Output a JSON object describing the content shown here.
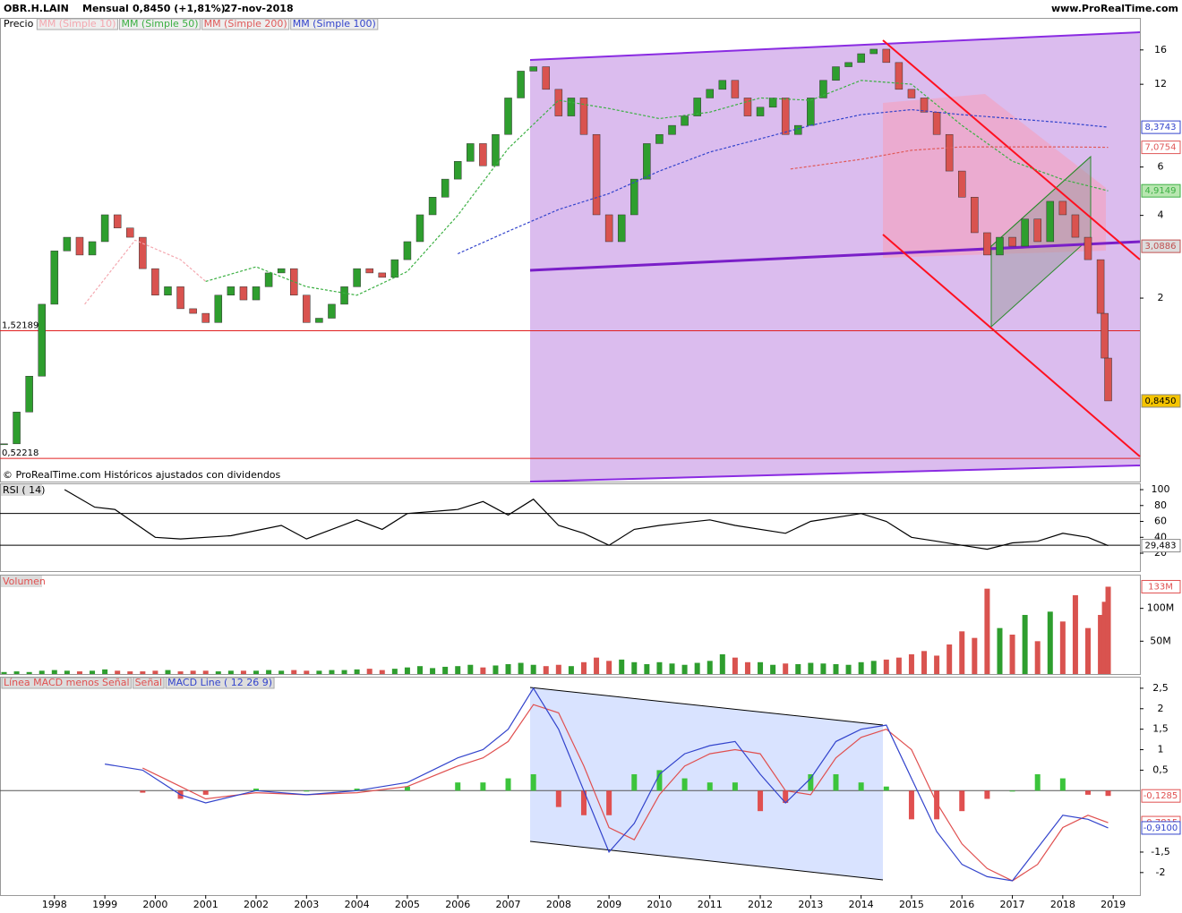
{
  "chart_data": [
    {
      "type": "candlestick",
      "log": true,
      "title": "OBR.H.LAIN",
      "period": "Mensual",
      "last": "0,8450 (+1,81%)",
      "date": "27-nov-2018",
      "source": "www.ProRealTime.com",
      "footnote": "© ProRealTime.com  Históricos ajustados con dividendos",
      "xlim": [
        1996.92,
        2019.53
      ],
      "xticks": [
        1998,
        1999,
        2000,
        2001,
        2002,
        2003,
        2004,
        2005,
        2006,
        2007,
        2008,
        2009,
        2010,
        2011,
        2012,
        2013,
        2014,
        2015,
        2016,
        2017,
        2018,
        2019
      ],
      "ylim": [
        0.43,
        18.7
      ],
      "yticks": [
        2,
        4,
        6,
        12,
        16
      ],
      "hlines": [
        {
          "value": 1.52189,
          "label": "1,52189"
        },
        {
          "value": 0.52218,
          "label": "0,52218"
        }
      ],
      "hline_color": "#e02020",
      "tags": [
        {
          "value": 3.0886,
          "label": "3,0886"
        }
      ],
      "series": [
        {
          "name": "Precio",
          "up_color": "#2e9e2e",
          "down_color": "#d9534f",
          "x": [
            1997.0,
            1997.25,
            1997.5,
            1997.75,
            1998.0,
            1998.25,
            1998.5,
            1998.75,
            1999.0,
            1999.25,
            1999.5,
            1999.75,
            2000.0,
            2000.25,
            2000.5,
            2000.75,
            2001.0,
            2001.25,
            2001.5,
            2001.75,
            2002.0,
            2002.25,
            2002.5,
            2002.75,
            2003.0,
            2003.25,
            2003.5,
            2003.75,
            2004.0,
            2004.25,
            2004.5,
            2004.75,
            2005.0,
            2005.25,
            2005.5,
            2005.75,
            2006.0,
            2006.25,
            2006.5,
            2006.75,
            2007.0,
            2007.25,
            2007.5,
            2007.75,
            2008.0,
            2008.25,
            2008.5,
            2008.75,
            2009.0,
            2009.25,
            2009.5,
            2009.75,
            2010.0,
            2010.25,
            2010.5,
            2010.75,
            2011.0,
            2011.25,
            2011.5,
            2011.75,
            2012.0,
            2012.25,
            2012.5,
            2012.75,
            2013.0,
            2013.25,
            2013.5,
            2013.75,
            2014.0,
            2014.25,
            2014.5,
            2014.75,
            2015.0,
            2015.25,
            2015.5,
            2015.75,
            2016.0,
            2016.25,
            2016.5,
            2016.75,
            2017.0,
            2017.25,
            2017.5,
            2017.75,
            2018.0,
            2018.25,
            2018.5,
            2018.75,
            2018.83,
            2018.9
          ],
          "values": [
            0.59,
            0.77,
            1.04,
            1.9,
            2.97,
            3.33,
            2.87,
            3.21,
            4.02,
            3.6,
            3.33,
            2.56,
            2.05,
            2.2,
            1.83,
            1.76,
            1.63,
            2.05,
            2.2,
            1.97,
            2.2,
            2.47,
            2.56,
            2.05,
            1.63,
            1.69,
            1.9,
            2.2,
            2.56,
            2.47,
            2.38,
            2.76,
            3.21,
            4.02,
            4.66,
            5.42,
            6.29,
            7.3,
            6.06,
            7.88,
            10.7,
            13.4,
            13.9,
            11.5,
            9.2,
            10.7,
            7.88,
            4.02,
            3.21,
            4.02,
            5.42,
            7.3,
            7.88,
            8.5,
            9.2,
            10.7,
            11.5,
            12.4,
            10.7,
            9.2,
            9.9,
            10.7,
            7.88,
            8.5,
            10.7,
            12.4,
            13.9,
            14.4,
            15.5,
            16.1,
            14.4,
            11.5,
            10.7,
            9.5,
            7.88,
            5.8,
            4.66,
            3.46,
            2.87,
            3.33,
            3.09,
            3.88,
            3.21,
            4.5,
            4.02,
            3.33,
            2.76,
            1.76,
            1.21,
            0.845
          ],
          "last_label": "0,8450",
          "tag_color": "#f5c400"
        },
        {
          "name": "MM (Simple 10)",
          "color": "#f4a8b0",
          "x": [
            1998.6,
            1999.6,
            2000.5,
            2001.0
          ],
          "values": [
            1.9,
            3.25,
            2.76,
            2.3
          ]
        },
        {
          "name": "MM (Simple 50)",
          "color": "#3cb043",
          "x": [
            2001.0,
            2002.0,
            2003.0,
            2004.0,
            2005.0,
            2006.0,
            2007.0,
            2008.0,
            2009.0,
            2010.0,
            2011.0,
            2012.0,
            2013.0,
            2014.0,
            2015.0,
            2016.0,
            2017.0,
            2018.0,
            2018.9
          ],
          "values": [
            2.3,
            2.6,
            2.2,
            2.05,
            2.5,
            4.0,
            7.0,
            10.5,
            9.8,
            9.0,
            9.5,
            10.7,
            10.5,
            12.4,
            12.0,
            8.5,
            6.3,
            5.4,
            4.9149
          ],
          "last_label": "4,9149"
        },
        {
          "name": "MM (Simple 200)",
          "color": "#e05a5a",
          "x": [
            2012.6,
            2014.0,
            2015.0,
            2016.0,
            2017.0,
            2018.0,
            2018.9
          ],
          "values": [
            5.9,
            6.4,
            6.9,
            7.1,
            7.1,
            7.1,
            7.0754
          ],
          "last_label": "7,0754"
        },
        {
          "name": "MM (Simple 100)",
          "color": "#3344cc",
          "x": [
            2006.0,
            2007.0,
            2008.0,
            2009.0,
            2010.0,
            2011.0,
            2012.0,
            2013.0,
            2014.0,
            2015.0,
            2016.0,
            2017.0,
            2018.0,
            2018.9
          ],
          "values": [
            2.9,
            3.5,
            4.2,
            4.8,
            5.8,
            6.8,
            7.6,
            8.5,
            9.3,
            9.7,
            9.3,
            9.0,
            8.7,
            8.3743
          ],
          "last_label": "8,3743"
        }
      ]
    },
    {
      "type": "line",
      "title": "RSI ( 14)",
      "ylim": [
        -2.5,
        106.8
      ],
      "yticks": [
        20,
        40,
        60,
        80,
        100
      ],
      "levels": [
        70,
        30
      ],
      "series": [
        {
          "name": "RSI",
          "color": "#000000",
          "x": [
            1998.2,
            1998.8,
            1999.2,
            2000.0,
            2000.5,
            2001.5,
            2002.5,
            2003.0,
            2004.0,
            2004.5,
            2005.0,
            2006.0,
            2006.5,
            2007.0,
            2007.5,
            2008.0,
            2008.5,
            2009.0,
            2009.5,
            2010.0,
            2011.0,
            2011.5,
            2012.5,
            2013.0,
            2014.0,
            2014.5,
            2015.0,
            2015.5,
            2016.0,
            2016.5,
            2017.0,
            2017.5,
            2018.0,
            2018.5,
            2018.9
          ],
          "values": [
            100,
            78,
            75,
            40,
            38,
            42,
            55,
            38,
            62,
            50,
            70,
            75,
            85,
            68,
            88,
            55,
            45,
            30,
            50,
            55,
            62,
            55,
            45,
            60,
            70,
            60,
            40,
            35,
            30,
            25,
            33,
            35,
            45,
            40,
            29.483
          ],
          "last_label": "29,483"
        }
      ]
    },
    {
      "type": "bar",
      "title": "Volumen",
      "ylim": [
        0,
        150000000
      ],
      "yticks": [
        {
          "value": 50000000,
          "label": "50M"
        },
        {
          "value": 100000000,
          "label": "100M"
        }
      ],
      "values": [
        3000000,
        4000000,
        3000000,
        5000000,
        6000000,
        5000000,
        4000000,
        5000000,
        7000000,
        5000000,
        4000000,
        4000000,
        5000000,
        6000000,
        4000000,
        5000000,
        5000000,
        4000000,
        5000000,
        5000000,
        5000000,
        6000000,
        5000000,
        6000000,
        5000000,
        5000000,
        6000000,
        6000000,
        7000000,
        8000000,
        6000000,
        8000000,
        10000000,
        12000000,
        9000000,
        11000000,
        12000000,
        14000000,
        10000000,
        13000000,
        15000000,
        17000000,
        14000000,
        12000000,
        14000000,
        12000000,
        18000000,
        25000000,
        20000000,
        22000000,
        18000000,
        15000000,
        18000000,
        16000000,
        14000000,
        17000000,
        20000000,
        30000000,
        25000000,
        18000000,
        18000000,
        14000000,
        16000000,
        15000000,
        17000000,
        16000000,
        15000000,
        14000000,
        18000000,
        20000000,
        22000000,
        25000000,
        30000000,
        35000000,
        28000000,
        45000000,
        65000000,
        55000000,
        130000000,
        70000000,
        60000000,
        90000000,
        50000000,
        95000000,
        80000000,
        120000000,
        70000000,
        90000000,
        110000000,
        133000000
      ],
      "last_label": "133M"
    },
    {
      "type": "line",
      "ylim": [
        -2.55,
        2.76
      ],
      "yticks": [
        {
          "value": 2.5,
          "label": "2,5"
        },
        2,
        {
          "value": 1.5,
          "label": "1,5"
        },
        1,
        {
          "value": 0.5,
          "label": "0,5"
        },
        {
          "value": -1.5,
          "label": "-1,5"
        },
        -2
      ],
      "x": [
        1999.0,
        1999.75,
        2000.5,
        2001.0,
        2002.0,
        2003.0,
        2004.0,
        2005.0,
        2006.0,
        2006.5,
        2007.0,
        2007.5,
        2008.0,
        2008.5,
        2009.0,
        2009.5,
        2010.0,
        2010.5,
        2011.0,
        2011.5,
        2012.0,
        2012.5,
        2013.0,
        2013.5,
        2014.0,
        2014.5,
        2015.0,
        2015.5,
        2016.0,
        2016.5,
        2017.0,
        2017.5,
        2018.0,
        2018.5,
        2018.9
      ],
      "series": [
        {
          "name": "Línea MACD menos Señal",
          "style": "histogram",
          "pos_color": "#3cc43c",
          "neg_color": "#e05050",
          "values": [
            null,
            -0.05,
            -0.2,
            -0.1,
            0.05,
            0,
            0.05,
            0.1,
            0.2,
            0.2,
            0.3,
            0.4,
            -0.4,
            -0.6,
            -0.6,
            0.4,
            0.5,
            0.3,
            0.2,
            0.2,
            -0.5,
            -0.3,
            0.4,
            0.4,
            0.2,
            0.1,
            -0.7,
            -0.7,
            -0.5,
            -0.2,
            0,
            0.4,
            0.3,
            -0.1,
            -0.1285
          ],
          "last_label": "-0,1285",
          "color": "#e05050"
        },
        {
          "name": "Señal",
          "color": "#e05050",
          "values": [
            null,
            0.55,
            0.1,
            -0.2,
            -0.05,
            -0.1,
            -0.05,
            0.1,
            0.6,
            0.8,
            1.2,
            2.1,
            1.9,
            0.6,
            -0.9,
            -1.2,
            -0.1,
            0.6,
            0.9,
            1.0,
            0.9,
            0.0,
            -0.1,
            0.8,
            1.3,
            1.5,
            1.0,
            -0.3,
            -1.3,
            -1.9,
            -2.2,
            -1.8,
            -0.9,
            -0.6,
            -0.7815
          ],
          "last_label": "-0,7815"
        },
        {
          "name": "MACD Line ( 12 26 9)",
          "color": "#3344cc",
          "values": [
            0.65,
            0.5,
            -0.1,
            -0.3,
            0.0,
            -0.1,
            0.0,
            0.2,
            0.8,
            1.0,
            1.5,
            2.5,
            1.5,
            0.0,
            -1.5,
            -0.8,
            0.4,
            0.9,
            1.1,
            1.2,
            0.4,
            -0.3,
            0.3,
            1.2,
            1.5,
            1.6,
            0.3,
            -1.0,
            -1.8,
            -2.1,
            -2.2,
            -1.4,
            -0.6,
            -0.7,
            -0.91
          ],
          "last_label": "-0,9100"
        }
      ]
    }
  ]
}
